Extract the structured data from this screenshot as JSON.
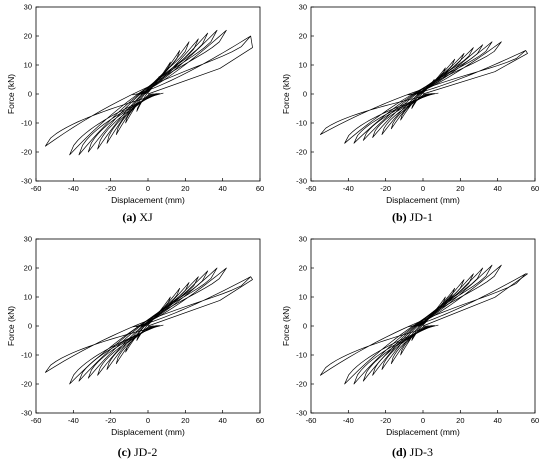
{
  "chart_data": [
    {
      "type": "line",
      "caption_label": "(a)",
      "caption_name": "XJ",
      "xlabel": "Displacement (mm)",
      "ylabel": "Force (kN)",
      "xlim": [
        -60,
        60
      ],
      "ylim": [
        -30,
        30
      ],
      "xticks": [
        -60,
        -40,
        -20,
        0,
        20,
        40,
        60
      ],
      "yticks": [
        -30,
        -20,
        -10,
        0,
        10,
        20,
        30
      ],
      "cycle_peaks": [
        [
          6,
          6,
          -6,
          -6
        ],
        [
          12,
          11,
          -12,
          -10
        ],
        [
          17,
          15,
          -17,
          -14
        ],
        [
          22,
          18,
          -22,
          -17
        ],
        [
          27,
          19,
          -27,
          -19
        ],
        [
          32,
          21,
          -32,
          -20
        ],
        [
          37,
          22,
          -37,
          -21
        ],
        [
          42,
          22,
          -42,
          -21
        ],
        [
          55,
          20,
          -55,
          -18
        ]
      ],
      "final_return": [
        56,
        16
      ]
    },
    {
      "type": "line",
      "caption_label": "(b)",
      "caption_name": "JD-1",
      "xlabel": "Displacement (mm)",
      "ylabel": "Force (kN)",
      "xlim": [
        -60,
        60
      ],
      "ylim": [
        -30,
        30
      ],
      "xticks": [
        -60,
        -40,
        -20,
        0,
        20,
        40,
        60
      ],
      "yticks": [
        -30,
        -20,
        -10,
        0,
        10,
        20,
        30
      ],
      "cycle_peaks": [
        [
          6,
          5,
          -6,
          -5
        ],
        [
          12,
          9,
          -12,
          -9
        ],
        [
          17,
          12,
          -17,
          -12
        ],
        [
          22,
          14,
          -22,
          -14
        ],
        [
          27,
          16,
          -27,
          -15
        ],
        [
          32,
          17,
          -32,
          -16
        ],
        [
          37,
          18,
          -37,
          -17
        ],
        [
          42,
          18,
          -42,
          -17
        ],
        [
          55,
          15,
          -55,
          -14
        ]
      ],
      "final_return": [
        56,
        14
      ]
    },
    {
      "type": "line",
      "caption_label": "(c)",
      "caption_name": "JD-2",
      "xlabel": "Displacement (mm)",
      "ylabel": "Force (kN)",
      "xlim": [
        -60,
        60
      ],
      "ylim": [
        -30,
        30
      ],
      "xticks": [
        -60,
        -40,
        -20,
        0,
        20,
        40,
        60
      ],
      "yticks": [
        -30,
        -20,
        -10,
        0,
        10,
        20,
        30
      ],
      "cycle_peaks": [
        [
          6,
          5,
          -6,
          -5
        ],
        [
          12,
          10,
          -12,
          -9
        ],
        [
          17,
          13,
          -17,
          -13
        ],
        [
          22,
          15,
          -22,
          -15
        ],
        [
          27,
          17,
          -27,
          -17
        ],
        [
          32,
          19,
          -32,
          -18
        ],
        [
          37,
          20,
          -37,
          -19
        ],
        [
          42,
          20,
          -42,
          -20
        ],
        [
          55,
          17,
          -55,
          -16
        ]
      ],
      "final_return": [
        56,
        16
      ]
    },
    {
      "type": "line",
      "caption_label": "(d)",
      "caption_name": "JD-3",
      "xlabel": "Displacement (mm)",
      "ylabel": "Force (kN)",
      "xlim": [
        -60,
        60
      ],
      "ylim": [
        -30,
        30
      ],
      "xticks": [
        -60,
        -40,
        -20,
        0,
        20,
        40,
        60
      ],
      "yticks": [
        -30,
        -20,
        -10,
        0,
        10,
        20,
        30
      ],
      "cycle_peaks": [
        [
          6,
          5,
          -6,
          -5
        ],
        [
          12,
          10,
          -12,
          -10
        ],
        [
          17,
          13,
          -17,
          -13
        ],
        [
          22,
          16,
          -22,
          -15
        ],
        [
          27,
          18,
          -27,
          -17
        ],
        [
          32,
          20,
          -32,
          -19
        ],
        [
          37,
          21,
          -37,
          -20
        ],
        [
          42,
          21,
          -42,
          -20
        ],
        [
          55,
          18,
          -55,
          -17
        ]
      ],
      "final_return": [
        56,
        18
      ]
    }
  ]
}
